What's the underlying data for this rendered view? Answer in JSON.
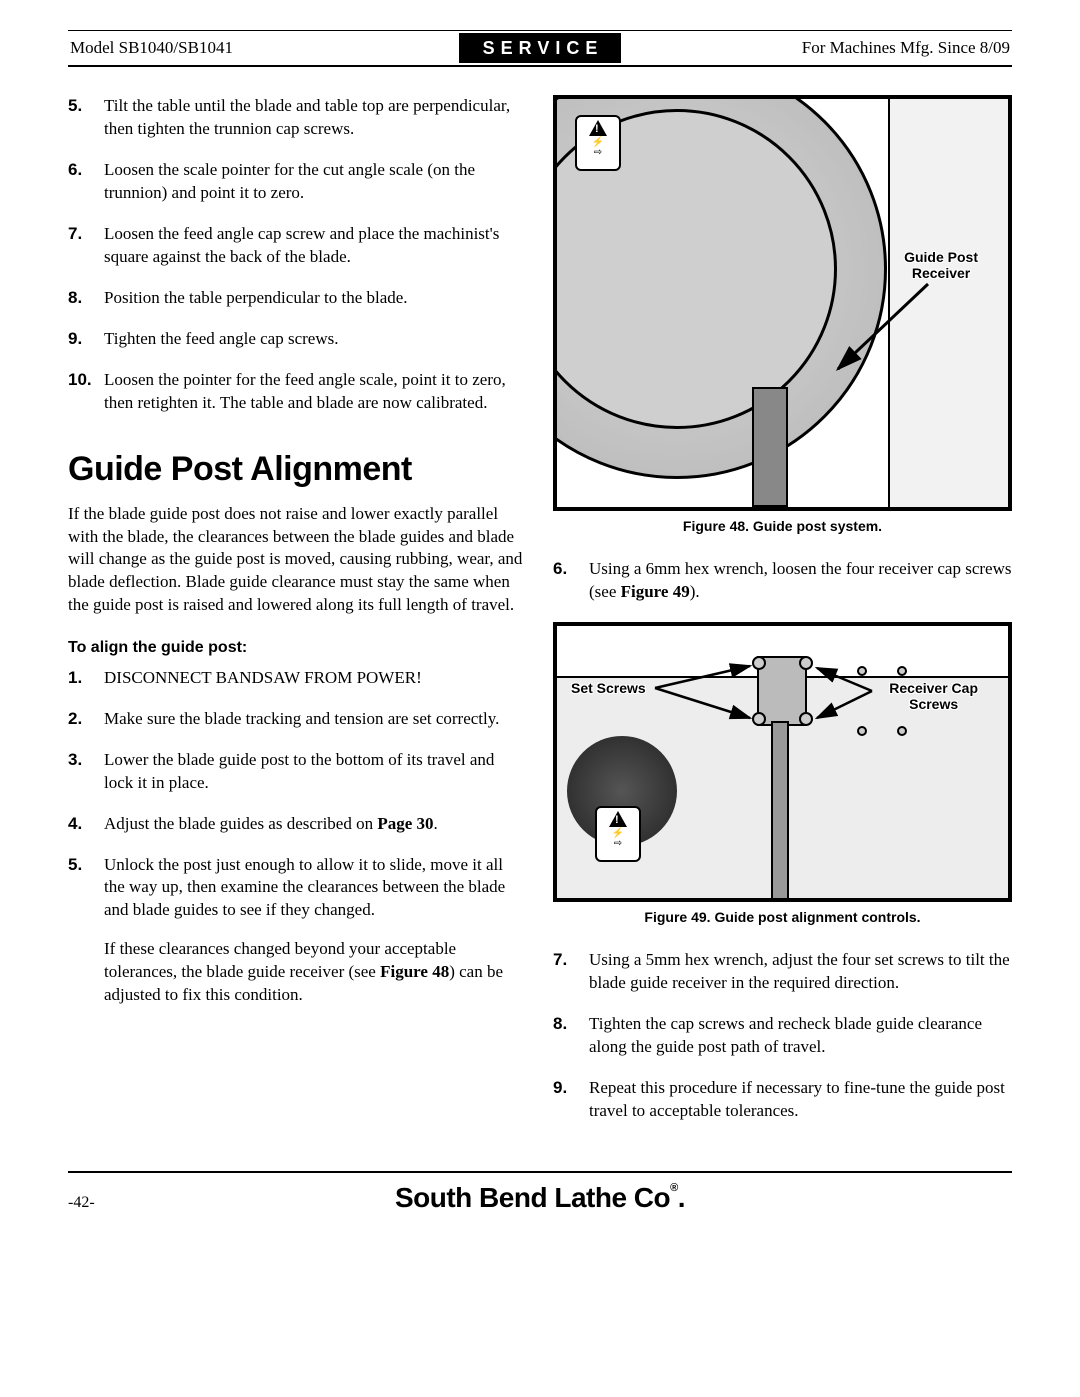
{
  "header": {
    "model": "Model SB1040/SB1041",
    "section": "SERVICE",
    "mfg": "For Machines Mfg. Since 8/09"
  },
  "left_steps_top": [
    {
      "n": "5.",
      "paras": [
        "Tilt the table until the blade and table top are perpendicular, then tighten the trunnion cap screws."
      ]
    },
    {
      "n": "6.",
      "paras": [
        "Loosen the scale pointer for the cut angle scale (on the trunnion) and point it to zero."
      ]
    },
    {
      "n": "7.",
      "paras": [
        "Loosen the feed angle cap screw and place the machinist's square against the back of the blade."
      ]
    },
    {
      "n": "8.",
      "paras": [
        "Position the table perpendicular to the blade."
      ]
    },
    {
      "n": "9.",
      "paras": [
        "Tighten the feed angle cap screws."
      ]
    },
    {
      "n": "10.",
      "paras": [
        "Loosen the pointer for the feed angle scale, point it to zero, then retighten it. The table and blade are now calibrated."
      ]
    }
  ],
  "section_title": "Guide Post Alignment",
  "intro": "If the blade guide post does not raise and lower exactly parallel with the blade, the clearances between the blade guides and blade will change as the guide post is moved, causing rubbing, wear, and blade deflection. Blade guide clearance must stay the same when the guide post is raised and lowered along its full length of travel.",
  "sub_heading": "To align the guide post:",
  "left_steps_bottom": [
    {
      "n": "1.",
      "paras": [
        "DISCONNECT BANDSAW FROM POWER!"
      ]
    },
    {
      "n": "2.",
      "paras": [
        "Make sure the blade tracking and tension are set correctly."
      ]
    },
    {
      "n": "3.",
      "paras": [
        "Lower the blade guide post to the bottom of its travel and lock it in place."
      ]
    }
  ],
  "step4": {
    "n": "4.",
    "pre": "Adjust the blade guides as described on ",
    "bold": "Page 30",
    "post": "."
  },
  "step5": {
    "n": "5.",
    "p1": "Unlock the post just enough to allow it to slide, move it all the way up, then examine the clearances between the blade and blade guides to see if they changed.",
    "p2_pre": "If these clearances changed beyond your acceptable tolerances, the blade guide receiver (see ",
    "p2_bold": "Figure 48",
    "p2_post": ") can be adjusted to fix this condition."
  },
  "fig48": {
    "caption": "Figure 48. Guide post system.",
    "callout": "Guide Post\nReceiver"
  },
  "right_step6": {
    "n": "6.",
    "pre": "Using a 6mm hex wrench, loosen the four receiver cap screws (see ",
    "bold": "Figure 49",
    "post": ")."
  },
  "fig49": {
    "caption": "Figure 49. Guide post alignment controls.",
    "callout_left": "Set Screws",
    "callout_right": "Receiver Cap\nScrews"
  },
  "right_steps_tail": [
    {
      "n": "7.",
      "paras": [
        "Using a 5mm hex wrench, adjust the four set screws to tilt the blade guide receiver in the required direction."
      ]
    },
    {
      "n": "8.",
      "paras": [
        "Tighten the cap screws and recheck blade guide clearance along the guide post path of travel."
      ]
    },
    {
      "n": "9.",
      "paras": [
        "Repeat this procedure if necessary to fine-tune the guide post travel to acceptable tolerances."
      ]
    }
  ],
  "footer": {
    "page": "-42-",
    "brand": "South Bend Lathe Co",
    "dot": "."
  }
}
